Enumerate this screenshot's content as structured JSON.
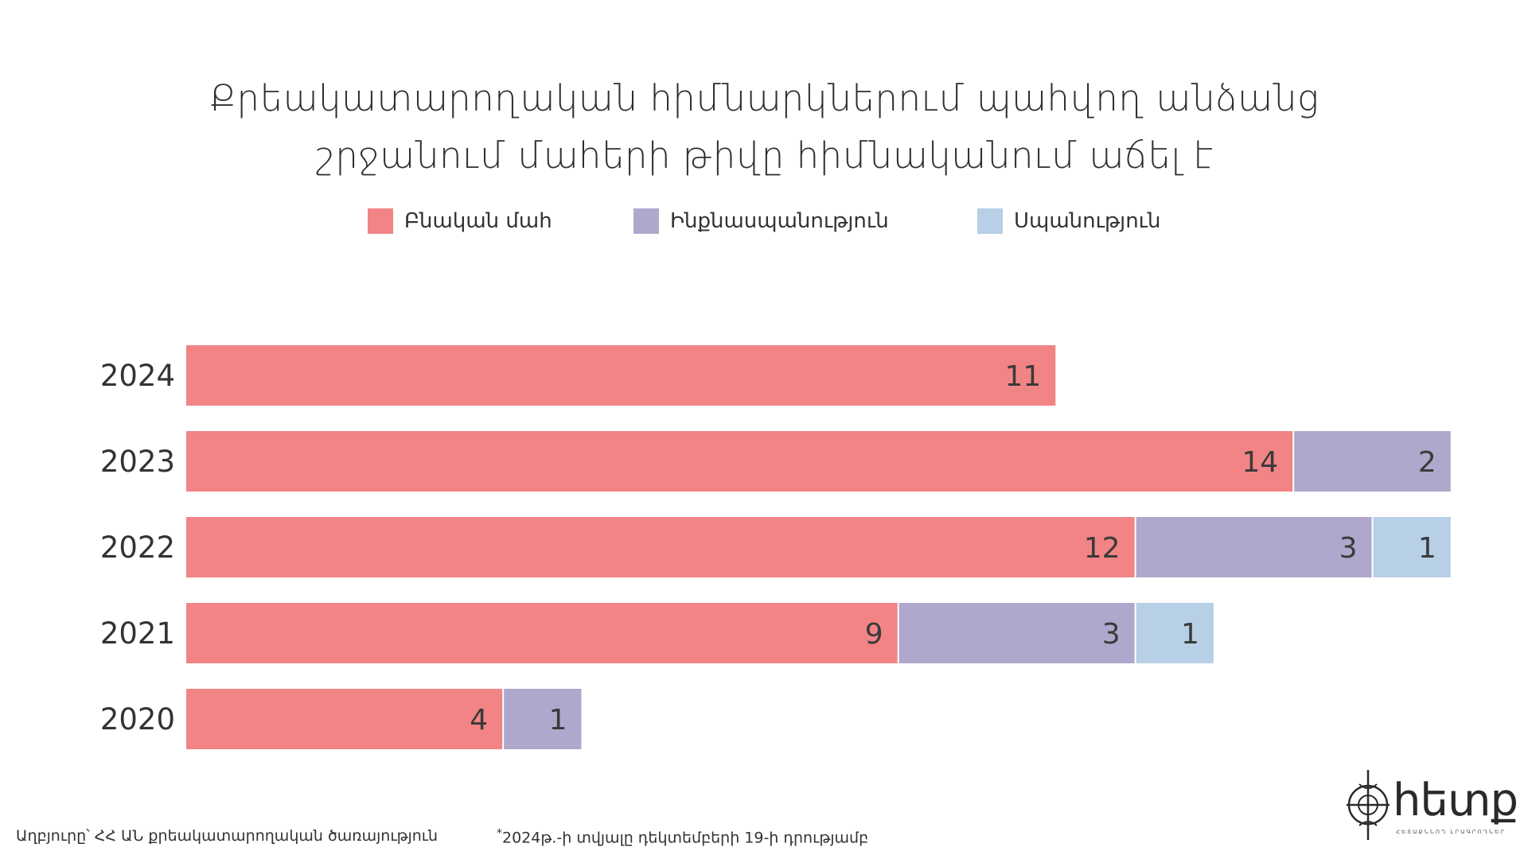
{
  "title": {
    "line1": "Քրեակատարողական հիմնարկներում պահվող անձանց",
    "line2": "շրջանում մահերի թիվը հիմնականում աճել է"
  },
  "chart_data": {
    "type": "bar",
    "orientation": "horizontal",
    "stacked": true,
    "categories": [
      "2024",
      "2023",
      "2022",
      "2021",
      "2020"
    ],
    "series": [
      {
        "name": "Բնական մահ",
        "color": "#f28486",
        "values": [
          11,
          14,
          12,
          9,
          4
        ]
      },
      {
        "name": "Ինքնասպանություն",
        "color": "#b0a7cc",
        "values": [
          0,
          2,
          3,
          3,
          1
        ]
      },
      {
        "name": "Սպանություն",
        "color": "#b8d0e6",
        "values": [
          0,
          0,
          1,
          1,
          0
        ]
      }
    ],
    "xlim": [
      0,
      16
    ],
    "legend_position": "top",
    "grid": false,
    "data_labels": true
  },
  "footer": {
    "source": "Աղբյուրը՝ ՀՀ ԱՆ քրեակատարողական ծառայություն",
    "note_mark": "*",
    "note": "2024թ.-ի տվյալը դեկտեմբերի 19-ի դրությամբ"
  },
  "logo": {
    "text": "հետք",
    "subtext": "ՀԵՏԱՔՆՆՈՂ ԼՐԱԳՐՈՂՆԵՐ"
  }
}
